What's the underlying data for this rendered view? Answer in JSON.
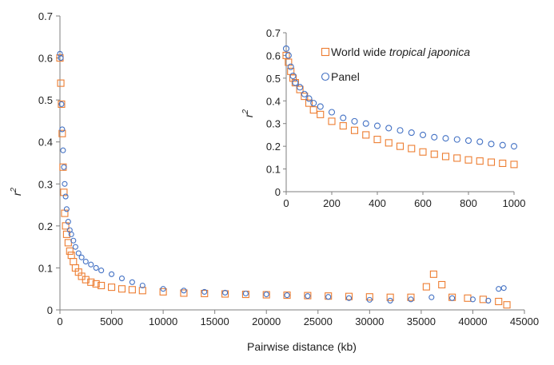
{
  "chart_data": [
    {
      "type": "scatter",
      "panel": "main",
      "xlabel": "Pairwise distance (kb)",
      "ylabel": "r",
      "ylabel_sup": "2",
      "xlim": [
        0,
        45000
      ],
      "ylim": [
        0,
        0.7
      ],
      "xticks": [
        "0",
        "5000",
        "10000",
        "15000",
        "20000",
        "25000",
        "30000",
        "35000",
        "40000",
        "45000"
      ],
      "yticks": [
        "0",
        "0.1",
        "0.2",
        "0.3",
        "0.4",
        "0.5",
        "0.6",
        "0.7"
      ],
      "series": [
        {
          "name": "World wide tropical japonica",
          "marker": "square",
          "color": "#ED7D31",
          "points": [
            [
              0,
              0.6
            ],
            [
              80,
              0.54
            ],
            [
              150,
              0.49
            ],
            [
              220,
              0.42
            ],
            [
              300,
              0.34
            ],
            [
              380,
              0.28
            ],
            [
              460,
              0.23
            ],
            [
              550,
              0.2
            ],
            [
              650,
              0.18
            ],
            [
              800,
              0.16
            ],
            [
              950,
              0.14
            ],
            [
              1100,
              0.13
            ],
            [
              1300,
              0.115
            ],
            [
              1500,
              0.1
            ],
            [
              1800,
              0.09
            ],
            [
              2100,
              0.08
            ],
            [
              2500,
              0.072
            ],
            [
              3000,
              0.066
            ],
            [
              3500,
              0.062
            ],
            [
              4000,
              0.058
            ],
            [
              5000,
              0.054
            ],
            [
              6000,
              0.05
            ],
            [
              7000,
              0.048
            ],
            [
              8000,
              0.046
            ],
            [
              10000,
              0.043
            ],
            [
              12000,
              0.04
            ],
            [
              14000,
              0.039
            ],
            [
              16000,
              0.038
            ],
            [
              18000,
              0.037
            ],
            [
              20000,
              0.036
            ],
            [
              22000,
              0.035
            ],
            [
              24000,
              0.034
            ],
            [
              26000,
              0.033
            ],
            [
              28000,
              0.032
            ],
            [
              30000,
              0.031
            ],
            [
              32000,
              0.03
            ],
            [
              34000,
              0.03
            ],
            [
              35500,
              0.055
            ],
            [
              36200,
              0.085
            ],
            [
              37000,
              0.06
            ],
            [
              38000,
              0.03
            ],
            [
              39500,
              0.028
            ],
            [
              41000,
              0.025
            ],
            [
              42500,
              0.02
            ],
            [
              43300,
              0.012
            ]
          ]
        },
        {
          "name": "Panel",
          "marker": "circle",
          "color": "#4472C4",
          "points": [
            [
              0,
              0.61
            ],
            [
              80,
              0.6
            ],
            [
              150,
              0.49
            ],
            [
              220,
              0.43
            ],
            [
              300,
              0.38
            ],
            [
              380,
              0.34
            ],
            [
              460,
              0.3
            ],
            [
              550,
              0.27
            ],
            [
              650,
              0.24
            ],
            [
              800,
              0.21
            ],
            [
              950,
              0.19
            ],
            [
              1100,
              0.18
            ],
            [
              1300,
              0.165
            ],
            [
              1500,
              0.15
            ],
            [
              1800,
              0.135
            ],
            [
              2100,
              0.125
            ],
            [
              2500,
              0.115
            ],
            [
              3000,
              0.108
            ],
            [
              3500,
              0.1
            ],
            [
              4000,
              0.094
            ],
            [
              5000,
              0.085
            ],
            [
              6000,
              0.075
            ],
            [
              7000,
              0.066
            ],
            [
              8000,
              0.058
            ],
            [
              10000,
              0.05
            ],
            [
              12000,
              0.046
            ],
            [
              14000,
              0.043
            ],
            [
              16000,
              0.041
            ],
            [
              18000,
              0.039
            ],
            [
              20000,
              0.037
            ],
            [
              22000,
              0.035
            ],
            [
              24000,
              0.033
            ],
            [
              26000,
              0.031
            ],
            [
              28000,
              0.028
            ],
            [
              30000,
              0.024
            ],
            [
              32000,
              0.022
            ],
            [
              34000,
              0.025
            ],
            [
              36000,
              0.03
            ],
            [
              38000,
              0.028
            ],
            [
              40000,
              0.025
            ],
            [
              41500,
              0.022
            ],
            [
              42500,
              0.05
            ],
            [
              43000,
              0.052
            ]
          ]
        }
      ]
    },
    {
      "type": "scatter",
      "panel": "inset",
      "ylabel": "r",
      "ylabel_sup": "2",
      "xlim": [
        0,
        1000
      ],
      "ylim": [
        0,
        0.7
      ],
      "xticks": [
        "0",
        "200",
        "400",
        "600",
        "800",
        "1000"
      ],
      "yticks": [
        "0",
        "0.1",
        "0.2",
        "0.3",
        "0.4",
        "0.5",
        "0.6",
        "0.7"
      ],
      "legend": [
        {
          "name_plain": "World wide ",
          "name_italic": "tropical japonica",
          "marker": "square",
          "color": "#ED7D31"
        },
        {
          "name_plain": "Panel",
          "name_italic": "",
          "marker": "circle",
          "color": "#4472C4"
        }
      ],
      "series": [
        {
          "name": "World wide tropical japonica",
          "marker": "square",
          "color": "#ED7D31",
          "points": [
            [
              0,
              0.6
            ],
            [
              10,
              0.57
            ],
            [
              20,
              0.53
            ],
            [
              30,
              0.5
            ],
            [
              40,
              0.48
            ],
            [
              60,
              0.45
            ],
            [
              80,
              0.42
            ],
            [
              100,
              0.39
            ],
            [
              120,
              0.36
            ],
            [
              150,
              0.34
            ],
            [
              200,
              0.31
            ],
            [
              250,
              0.29
            ],
            [
              300,
              0.27
            ],
            [
              350,
              0.25
            ],
            [
              400,
              0.23
            ],
            [
              450,
              0.215
            ],
            [
              500,
              0.2
            ],
            [
              550,
              0.19
            ],
            [
              600,
              0.175
            ],
            [
              650,
              0.165
            ],
            [
              700,
              0.155
            ],
            [
              750,
              0.148
            ],
            [
              800,
              0.14
            ],
            [
              850,
              0.135
            ],
            [
              900,
              0.13
            ],
            [
              950,
              0.125
            ],
            [
              1000,
              0.12
            ]
          ]
        },
        {
          "name": "Panel",
          "marker": "circle",
          "color": "#4472C4",
          "points": [
            [
              0,
              0.63
            ],
            [
              10,
              0.6
            ],
            [
              20,
              0.55
            ],
            [
              30,
              0.51
            ],
            [
              40,
              0.48
            ],
            [
              60,
              0.46
            ],
            [
              80,
              0.43
            ],
            [
              100,
              0.41
            ],
            [
              120,
              0.39
            ],
            [
              150,
              0.375
            ],
            [
              200,
              0.35
            ],
            [
              250,
              0.325
            ],
            [
              300,
              0.31
            ],
            [
              350,
              0.3
            ],
            [
              400,
              0.29
            ],
            [
              450,
              0.28
            ],
            [
              500,
              0.27
            ],
            [
              550,
              0.26
            ],
            [
              600,
              0.25
            ],
            [
              650,
              0.24
            ],
            [
              700,
              0.235
            ],
            [
              750,
              0.23
            ],
            [
              800,
              0.225
            ],
            [
              850,
              0.22
            ],
            [
              900,
              0.21
            ],
            [
              950,
              0.205
            ],
            [
              1000,
              0.2
            ]
          ]
        }
      ]
    }
  ]
}
